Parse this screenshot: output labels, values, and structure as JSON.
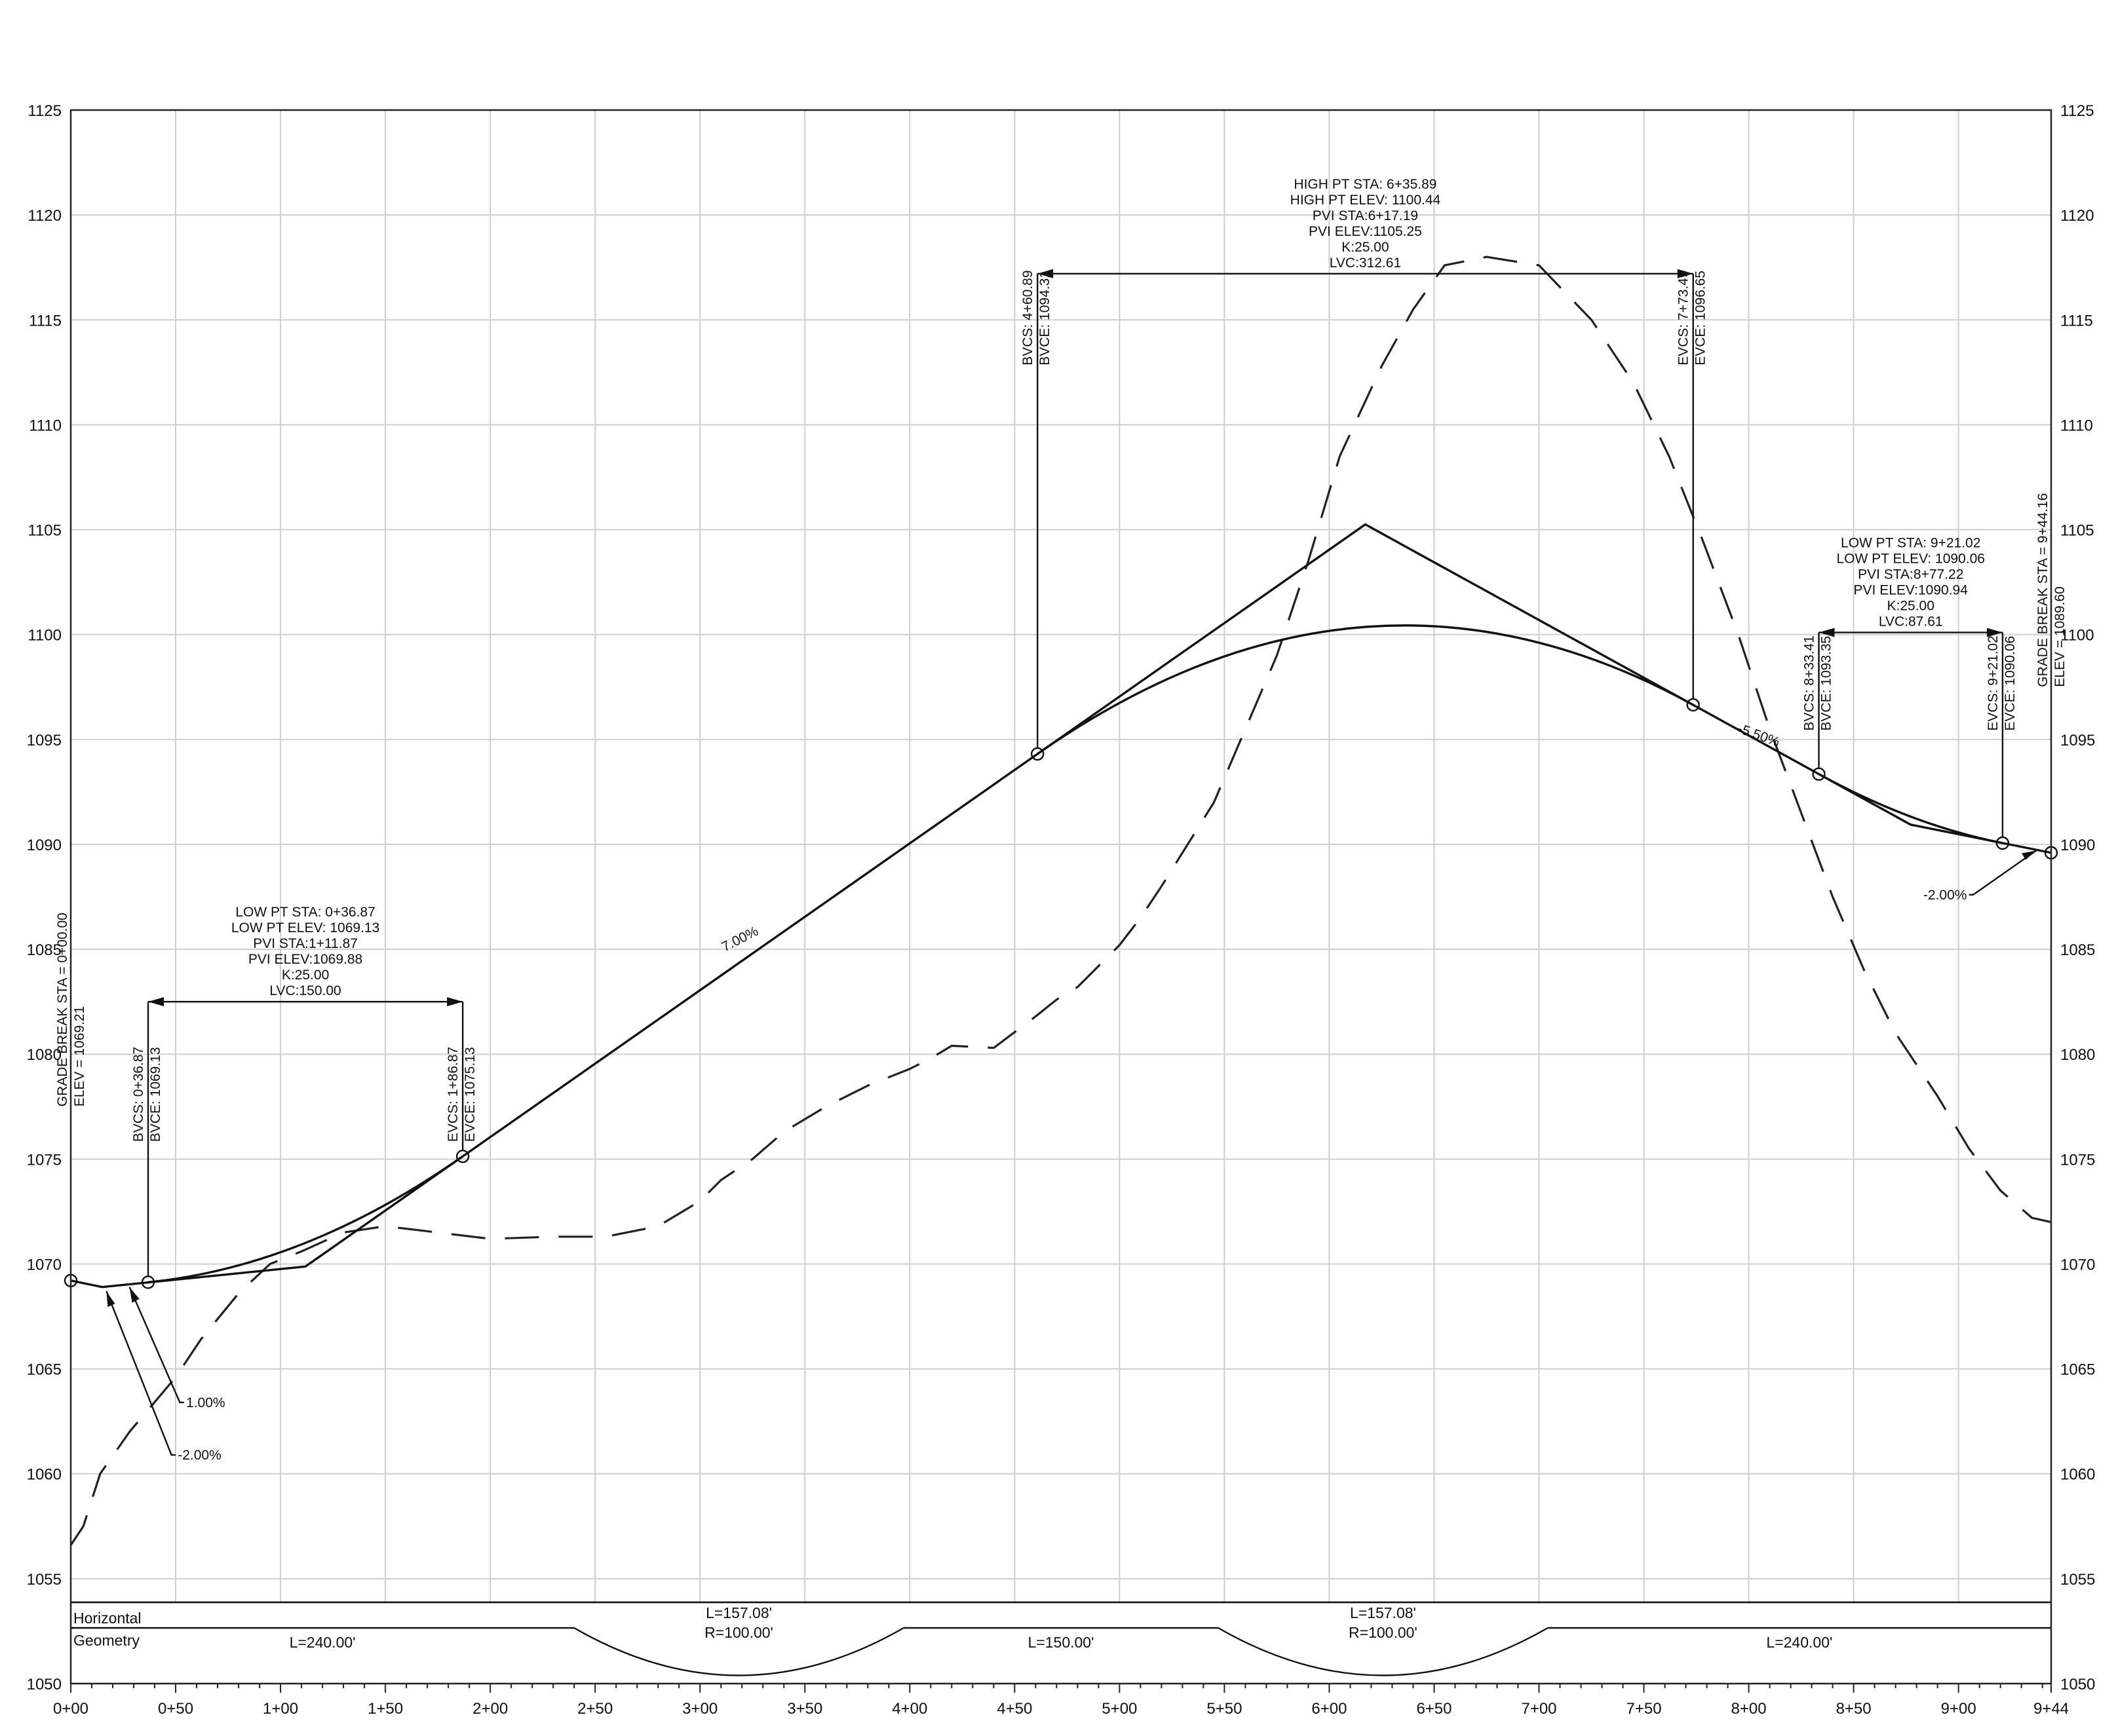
{
  "chart_data": {
    "type": "line",
    "xlim": [
      0,
      944.16
    ],
    "ylim": [
      1050,
      1125
    ],
    "grid": true,
    "x_tick_labels": [
      "0+00",
      "0+50",
      "1+00",
      "1+50",
      "2+00",
      "2+50",
      "3+00",
      "3+50",
      "4+00",
      "4+50",
      "5+00",
      "5+50",
      "6+00",
      "6+50",
      "7+00",
      "7+50",
      "8+00",
      "8+50",
      "9+00",
      "9+44"
    ],
    "y_tick_labels": [
      "1050",
      "1055",
      "1060",
      "1065",
      "1070",
      "1075",
      "1080",
      "1085",
      "1090",
      "1095",
      "1100",
      "1105",
      "1110",
      "1115",
      "1120",
      "1125"
    ],
    "series": [
      {
        "style": "dashed",
        "points": [
          [
            0,
            1056.6
          ],
          [
            6,
            1057.5
          ],
          [
            14,
            1060.0
          ],
          [
            28,
            1062.0
          ],
          [
            50,
            1064.6
          ],
          [
            62,
            1066.4
          ],
          [
            80,
            1068.6
          ],
          [
            95,
            1070.0
          ],
          [
            110,
            1070.6
          ],
          [
            130,
            1071.5
          ],
          [
            150,
            1071.8
          ],
          [
            175,
            1071.5
          ],
          [
            200,
            1071.2
          ],
          [
            230,
            1071.3
          ],
          [
            255,
            1071.3
          ],
          [
            280,
            1071.8
          ],
          [
            300,
            1073.0
          ],
          [
            310,
            1074.0
          ],
          [
            325,
            1075.0
          ],
          [
            340,
            1076.3
          ],
          [
            360,
            1077.5
          ],
          [
            380,
            1078.5
          ],
          [
            400,
            1079.3
          ],
          [
            410,
            1079.8
          ],
          [
            420,
            1080.4
          ],
          [
            440,
            1080.3
          ],
          [
            460,
            1081.8
          ],
          [
            470,
            1082.6
          ],
          [
            480,
            1083.2
          ],
          [
            490,
            1084.2
          ],
          [
            500,
            1085.2
          ],
          [
            510,
            1086.5
          ],
          [
            520,
            1088.0
          ],
          [
            530,
            1089.6
          ],
          [
            545,
            1092.0
          ],
          [
            560,
            1095.5
          ],
          [
            575,
            1099.0
          ],
          [
            590,
            1103.5
          ],
          [
            605,
            1108.5
          ],
          [
            625,
            1112.8
          ],
          [
            640,
            1115.5
          ],
          [
            655,
            1117.6
          ],
          [
            675,
            1118.0
          ],
          [
            700,
            1117.6
          ],
          [
            725,
            1115.0
          ],
          [
            745,
            1112.0
          ],
          [
            762,
            1108.5
          ],
          [
            778,
            1104.5
          ],
          [
            795,
            1100.0
          ],
          [
            810,
            1095.5
          ],
          [
            825,
            1091.5
          ],
          [
            840,
            1087.5
          ],
          [
            855,
            1084.0
          ],
          [
            870,
            1081.0
          ],
          [
            890,
            1078.0
          ],
          [
            905,
            1075.5
          ],
          [
            920,
            1073.5
          ],
          [
            935,
            1072.2
          ],
          [
            944,
            1072.0
          ]
        ]
      },
      {
        "style": "solid",
        "points": [
          [
            0,
            1069.21
          ],
          [
            15,
            1068.9
          ],
          [
            111.87,
            1069.88
          ],
          [
            617.19,
            1105.25
          ],
          [
            877.22,
            1090.94
          ],
          [
            944.16,
            1089.6
          ]
        ]
      }
    ],
    "vertical_curves": [
      {
        "bvc_sta": 36.87,
        "bvc_elev": 1069.13,
        "pvi_sta": 111.87,
        "pvi_elev": 1069.88,
        "evc_sta": 186.87,
        "evc_elev": 1075.13
      },
      {
        "bvc_sta": 460.89,
        "bvc_elev": 1094.31,
        "pvi_sta": 617.19,
        "pvi_elev": 1105.25,
        "evc_sta": 773.49,
        "evc_elev": 1096.65
      },
      {
        "bvc_sta": 833.41,
        "bvc_elev": 1093.35,
        "pvi_sta": 877.22,
        "pvi_elev": 1090.94,
        "evc_sta": 921.02,
        "evc_elev": 1090.06
      }
    ],
    "curve_labels": [
      {
        "lines": [
          "LOW PT STA: 0+36.87",
          "LOW PT ELEV: 1069.13",
          "PVI STA:1+11.87",
          "PVI ELEV:1069.88",
          "K:25.00",
          "LVC:150.00"
        ],
        "begin": [
          "BVCS: 0+36.87",
          "BVCE: 1069.13"
        ],
        "end": [
          "EVCS: 1+86.87",
          "EVCE: 1075.13"
        ]
      },
      {
        "lines": [
          "HIGH PT STA: 6+35.89",
          "HIGH PT ELEV: 1100.44",
          "PVI STA:6+17.19",
          "PVI ELEV:1105.25",
          "K:25.00",
          "LVC:312.61"
        ],
        "begin": [
          "BVCS: 4+60.89",
          "BVCE: 1094.31"
        ],
        "end": [
          "EVCS: 7+73.49",
          "EVCE: 1096.65"
        ]
      },
      {
        "lines": [
          "LOW PT STA: 9+21.02",
          "LOW PT ELEV: 1090.06",
          "PVI STA:8+77.22",
          "PVI ELEV:1090.94",
          "K:25.00",
          "LVC:87.61"
        ],
        "begin": [
          "BVCS: 8+33.41",
          "BVCE: 1093.35"
        ],
        "end": [
          "EVCS: 9+21.02",
          "EVCE: 1090.06"
        ]
      }
    ],
    "grade_breaks": [
      {
        "sta": 0,
        "elev": 1069.21,
        "lines": [
          "GRADE BREAK STA = 0+00.00",
          "ELEV = 1069.21"
        ]
      },
      {
        "sta": 944.16,
        "elev": 1089.6,
        "lines": [
          "GRADE BREAK STA = 9+44.16",
          "ELEV = 1089.60"
        ]
      }
    ],
    "grade_labels": {
      "g_start_neg": "-2.00%",
      "g_start_pos": "1.00%",
      "g_up": "7.00%",
      "g_down": "-5.50%",
      "g_end": "-2.00%"
    },
    "horizontal_geometry": {
      "label_lines": [
        "Horizontal",
        "Geometry"
      ],
      "segments": [
        {
          "kind": "tangent",
          "start": 0,
          "end": 240,
          "label": "L=240.00'"
        },
        {
          "kind": "curve",
          "start": 240,
          "end": 397.08,
          "label": [
            "L=157.08'",
            "R=100.00'"
          ]
        },
        {
          "kind": "tangent",
          "start": 397.08,
          "end": 547.08,
          "label": "L=150.00'"
        },
        {
          "kind": "curve",
          "start": 547.08,
          "end": 704.16,
          "label": [
            "L=157.08'",
            "R=100.00'"
          ]
        },
        {
          "kind": "tangent",
          "start": 704.16,
          "end": 944.16,
          "label": "L=240.00'"
        }
      ]
    }
  }
}
